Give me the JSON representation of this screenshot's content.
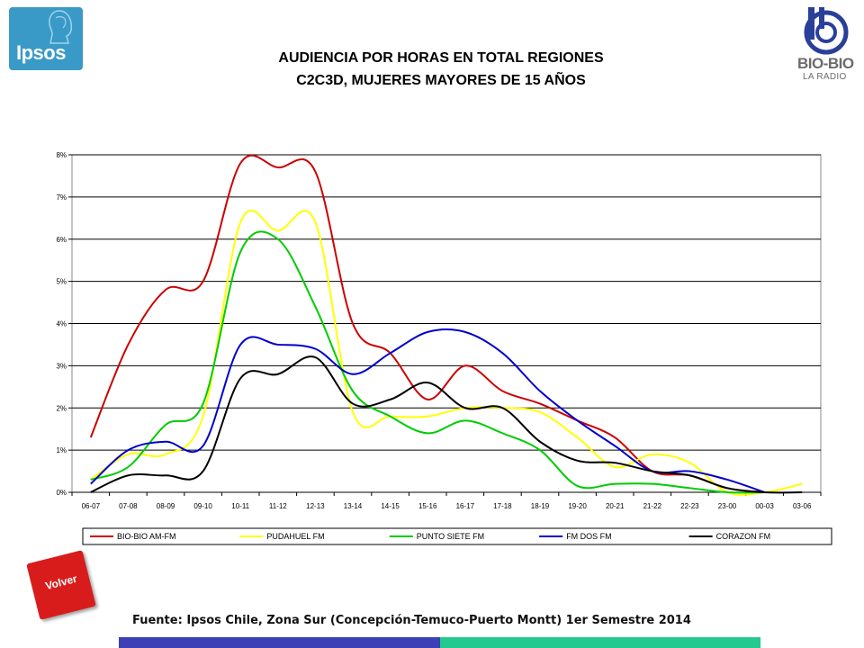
{
  "header": {
    "title_line1": "AUDIENCIA POR HORAS EN TOTAL REGIONES",
    "title_line2": "C2C3D, MUJERES MAYORES DE 15 AÑOS"
  },
  "logos": {
    "left": "Ipsos",
    "right_name": "BIO-BIO",
    "right_sub": "LA RADIO"
  },
  "nav": {
    "back_label": "Volver"
  },
  "footer": {
    "source": "Fuente: Ipsos Chile, Zona Sur (Concepción-Temuco-Puerto Montt) 1er Semestre 2014"
  },
  "colors": {
    "bar_blue": "#3c3fb5",
    "bar_green": "#23c98f"
  },
  "chart_data": {
    "type": "line",
    "categories": [
      "06-07",
      "07-08",
      "08-09",
      "09-10",
      "10-11",
      "11-12",
      "12-13",
      "13-14",
      "14-15",
      "15-16",
      "16-17",
      "17-18",
      "18-19",
      "19-20",
      "20-21",
      "21-22",
      "22-23",
      "23-00",
      "00-03",
      "03-06"
    ],
    "ylim": [
      0,
      8
    ],
    "yticks": [
      "0%",
      "1%",
      "2%",
      "3%",
      "4%",
      "5%",
      "6%",
      "7%",
      "8%"
    ],
    "grid": true,
    "legend_position": "bottom",
    "series": [
      {
        "name": "BIO-BIO AM-FM",
        "color": "#cc0000",
        "values": [
          1.3,
          3.5,
          4.8,
          5.0,
          7.8,
          7.7,
          7.6,
          4.0,
          3.3,
          2.2,
          3.0,
          2.4,
          2.1,
          1.7,
          1.3,
          0.5,
          0.4,
          0.1,
          0.0,
          null
        ]
      },
      {
        "name": "PUDAHUEL FM",
        "color": "#ffff00",
        "values": [
          0.3,
          0.9,
          0.9,
          1.8,
          6.4,
          6.2,
          6.4,
          1.9,
          1.8,
          1.8,
          2.0,
          2.0,
          1.9,
          1.3,
          0.6,
          0.9,
          0.7,
          0.0,
          0.0,
          0.2
        ]
      },
      {
        "name": "PUNTO SIETE FM",
        "color": "#00cc00",
        "values": [
          0.3,
          0.6,
          1.6,
          2.1,
          5.7,
          6.0,
          4.4,
          2.4,
          1.8,
          1.4,
          1.7,
          1.4,
          1.0,
          0.15,
          0.2,
          0.2,
          0.1,
          0.0,
          0.0,
          null
        ]
      },
      {
        "name": "FM DOS FM",
        "color": "#0000cc",
        "values": [
          0.2,
          1.0,
          1.2,
          1.1,
          3.5,
          3.5,
          3.4,
          2.8,
          3.3,
          3.8,
          3.8,
          3.3,
          2.4,
          1.7,
          1.1,
          0.5,
          0.5,
          0.3,
          0.0,
          null
        ]
      },
      {
        "name": "CORAZON FM",
        "color": "#000000",
        "values": [
          0.0,
          0.4,
          0.4,
          0.5,
          2.7,
          2.8,
          3.2,
          2.1,
          2.2,
          2.6,
          2.0,
          2.0,
          1.2,
          0.75,
          0.7,
          0.5,
          0.4,
          0.1,
          0.0,
          0.0
        ]
      }
    ]
  }
}
